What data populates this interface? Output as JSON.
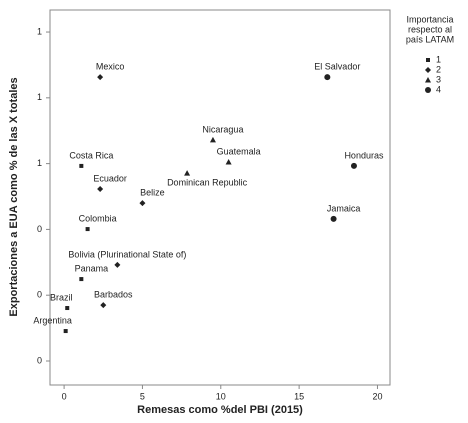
{
  "chart_data": {
    "type": "scatter",
    "x_label": "Remesas como %del PBI (2015)",
    "y_label": "Exportaciones a EUA como % de las X totales",
    "legend_title": [
      "Importancia",
      "respecto al",
      "país LATAM"
    ],
    "xlim": [
      -0.9,
      20.8
    ],
    "xticks": [
      0,
      5,
      10,
      15,
      20
    ],
    "ylim": [
      -0.073,
      1.067
    ],
    "yticks": [
      {
        "value": 0,
        "label": "0"
      },
      {
        "value": 0.2,
        "label": "0"
      },
      {
        "value": 0.4,
        "label": "0"
      },
      {
        "value": 0.6,
        "label": "1"
      },
      {
        "value": 0.8,
        "label": "1"
      },
      {
        "value": 1.0,
        "label": "1"
      }
    ],
    "color": "#222222",
    "series": [
      {
        "name": "1",
        "marker": "square",
        "labels": [
          "Costa Rica",
          "Colombia",
          "Panama",
          "Brazil",
          "Argentina"
        ],
        "x": [
          1.1,
          1.5,
          1.1,
          0.2,
          0.1
        ],
        "values": [
          0.593,
          0.401,
          0.249,
          0.161,
          0.091
        ]
      },
      {
        "name": "2",
        "marker": "diamond",
        "labels": [
          "Mexico",
          "Ecuador",
          "Belize",
          "Bolivia (Plurinational State of)",
          "Barbados"
        ],
        "x": [
          2.3,
          2.3,
          5.0,
          3.4,
          2.5
        ],
        "values": [
          0.863,
          0.523,
          0.48,
          0.292,
          0.17
        ]
      },
      {
        "name": "3",
        "marker": "triangle",
        "labels": [
          "Nicaragua",
          "Guatemala",
          "Dominican Republic"
        ],
        "x": [
          9.5,
          10.5,
          7.85
        ],
        "values": [
          0.672,
          0.605,
          0.571
        ]
      },
      {
        "name": "4",
        "marker": "circle",
        "labels": [
          "El Salvador",
          "Honduras",
          "Jamaica"
        ],
        "x": [
          16.8,
          18.5,
          17.2
        ],
        "values": [
          0.863,
          0.593,
          0.432
        ]
      }
    ]
  }
}
